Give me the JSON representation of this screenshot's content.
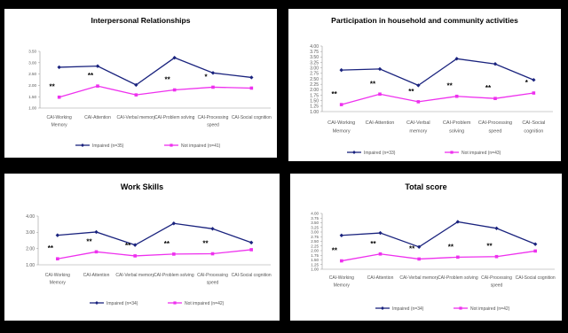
{
  "chart_data": [
    {
      "type": "line",
      "title": "Interpersonal Relationships",
      "categories": [
        [
          "CAI-Working",
          "Memory"
        ],
        [
          "CAI-Attention"
        ],
        [
          "CAI-Verbal memory"
        ],
        [
          "CAI-Problem solving"
        ],
        [
          "CAI-Processing",
          "speed"
        ],
        [
          "CAI-Social cognition"
        ]
      ],
      "ylim": [
        1.0,
        3.5
      ],
      "yticks": [
        "1.00",
        "1.50",
        "2.00",
        "2.50",
        "3.00",
        "3.50"
      ],
      "series": [
        {
          "name": "Impaired (n=35)",
          "color": "#1a237e",
          "values": [
            2.8,
            2.85,
            2.02,
            3.22,
            2.55,
            2.35
          ]
        },
        {
          "name": "Not impaired (n=41)",
          "color": "#ee30ee",
          "values": [
            1.48,
            1.97,
            1.58,
            1.8,
            1.92,
            1.88
          ]
        }
      ],
      "significance": [
        "**",
        "**",
        "",
        "**",
        "*",
        ""
      ]
    },
    {
      "type": "line",
      "title": "Participation in household and community activities",
      "categories": [
        [
          "CAI-Working",
          "Memory"
        ],
        [
          "CAI-Attention"
        ],
        [
          "CAI-Verbal",
          "memory"
        ],
        [
          "CAI-Problem",
          "solving"
        ],
        [
          "CAI-Processing",
          "speed"
        ],
        [
          "CAI-Social",
          "cognition"
        ]
      ],
      "ylim": [
        1.0,
        4.0
      ],
      "yticks": [
        "1.00",
        "1.25",
        "1.50",
        "1.75",
        "2.00",
        "2.25",
        "2.50",
        "2.75",
        "3.00",
        "3.25",
        "3.50",
        "3.75",
        "4.00"
      ],
      "series": [
        {
          "name": "Impaired (n=33)",
          "color": "#1a237e",
          "values": [
            2.9,
            2.95,
            2.2,
            3.42,
            3.18,
            2.45
          ]
        },
        {
          "name": "Not impaired (n=43)",
          "color": "#ee30ee",
          "values": [
            1.32,
            1.8,
            1.45,
            1.7,
            1.6,
            1.85
          ]
        }
      ],
      "significance": [
        "**",
        "**",
        "**",
        "**",
        "**",
        "*"
      ]
    },
    {
      "type": "line",
      "title": "Work Skills",
      "categories": [
        [
          "CAI-Working",
          "Memory"
        ],
        [
          "CAI-Attention"
        ],
        [
          "CAI-Verbal memory"
        ],
        [
          "CAI-Problem solving"
        ],
        [
          "CAI-Processing",
          "speed"
        ],
        [
          "CAI-Social cognition"
        ]
      ],
      "ylim": [
        1.0,
        4.0
      ],
      "yticks": [
        "1.00",
        "2.00",
        "3.00",
        "4.00"
      ],
      "series": [
        {
          "name": "Impaired (n=34)",
          "color": "#1a237e",
          "values": [
            2.82,
            3.02,
            2.22,
            3.55,
            3.22,
            2.37
          ]
        },
        {
          "name": "Not impaired (n=42)",
          "color": "#ee30ee",
          "values": [
            1.37,
            1.8,
            1.55,
            1.66,
            1.68,
            1.93
          ]
        }
      ],
      "significance": [
        "**",
        "**",
        "**",
        "**",
        "**",
        ""
      ]
    },
    {
      "type": "line",
      "title": "Total score",
      "categories": [
        [
          "CAI-Working",
          "Memory"
        ],
        [
          "CAI-Attention"
        ],
        [
          "CAI-Verbal memory"
        ],
        [
          "CAI-Problem solving"
        ],
        [
          "CAI-Processing",
          "speed"
        ],
        [
          "CAI-Social cognition"
        ]
      ],
      "ylim": [
        1.0,
        4.0
      ],
      "yticks": [
        "1.00",
        "1.25",
        "1.50",
        "1.75",
        "2.00",
        "2.25",
        "2.50",
        "2.75",
        "3.00",
        "3.25",
        "3.50",
        "3.75",
        "4.00"
      ],
      "series": [
        {
          "name": "Impaired (n=34)",
          "color": "#1a237e",
          "values": [
            2.82,
            2.95,
            2.2,
            3.55,
            3.2,
            2.35
          ]
        },
        {
          "name": "Not impaired (n=42)",
          "color": "#ee30ee",
          "values": [
            1.45,
            1.82,
            1.55,
            1.65,
            1.68,
            1.98
          ]
        }
      ],
      "significance": [
        "**",
        "**",
        "**",
        "**",
        "**",
        ""
      ]
    }
  ]
}
